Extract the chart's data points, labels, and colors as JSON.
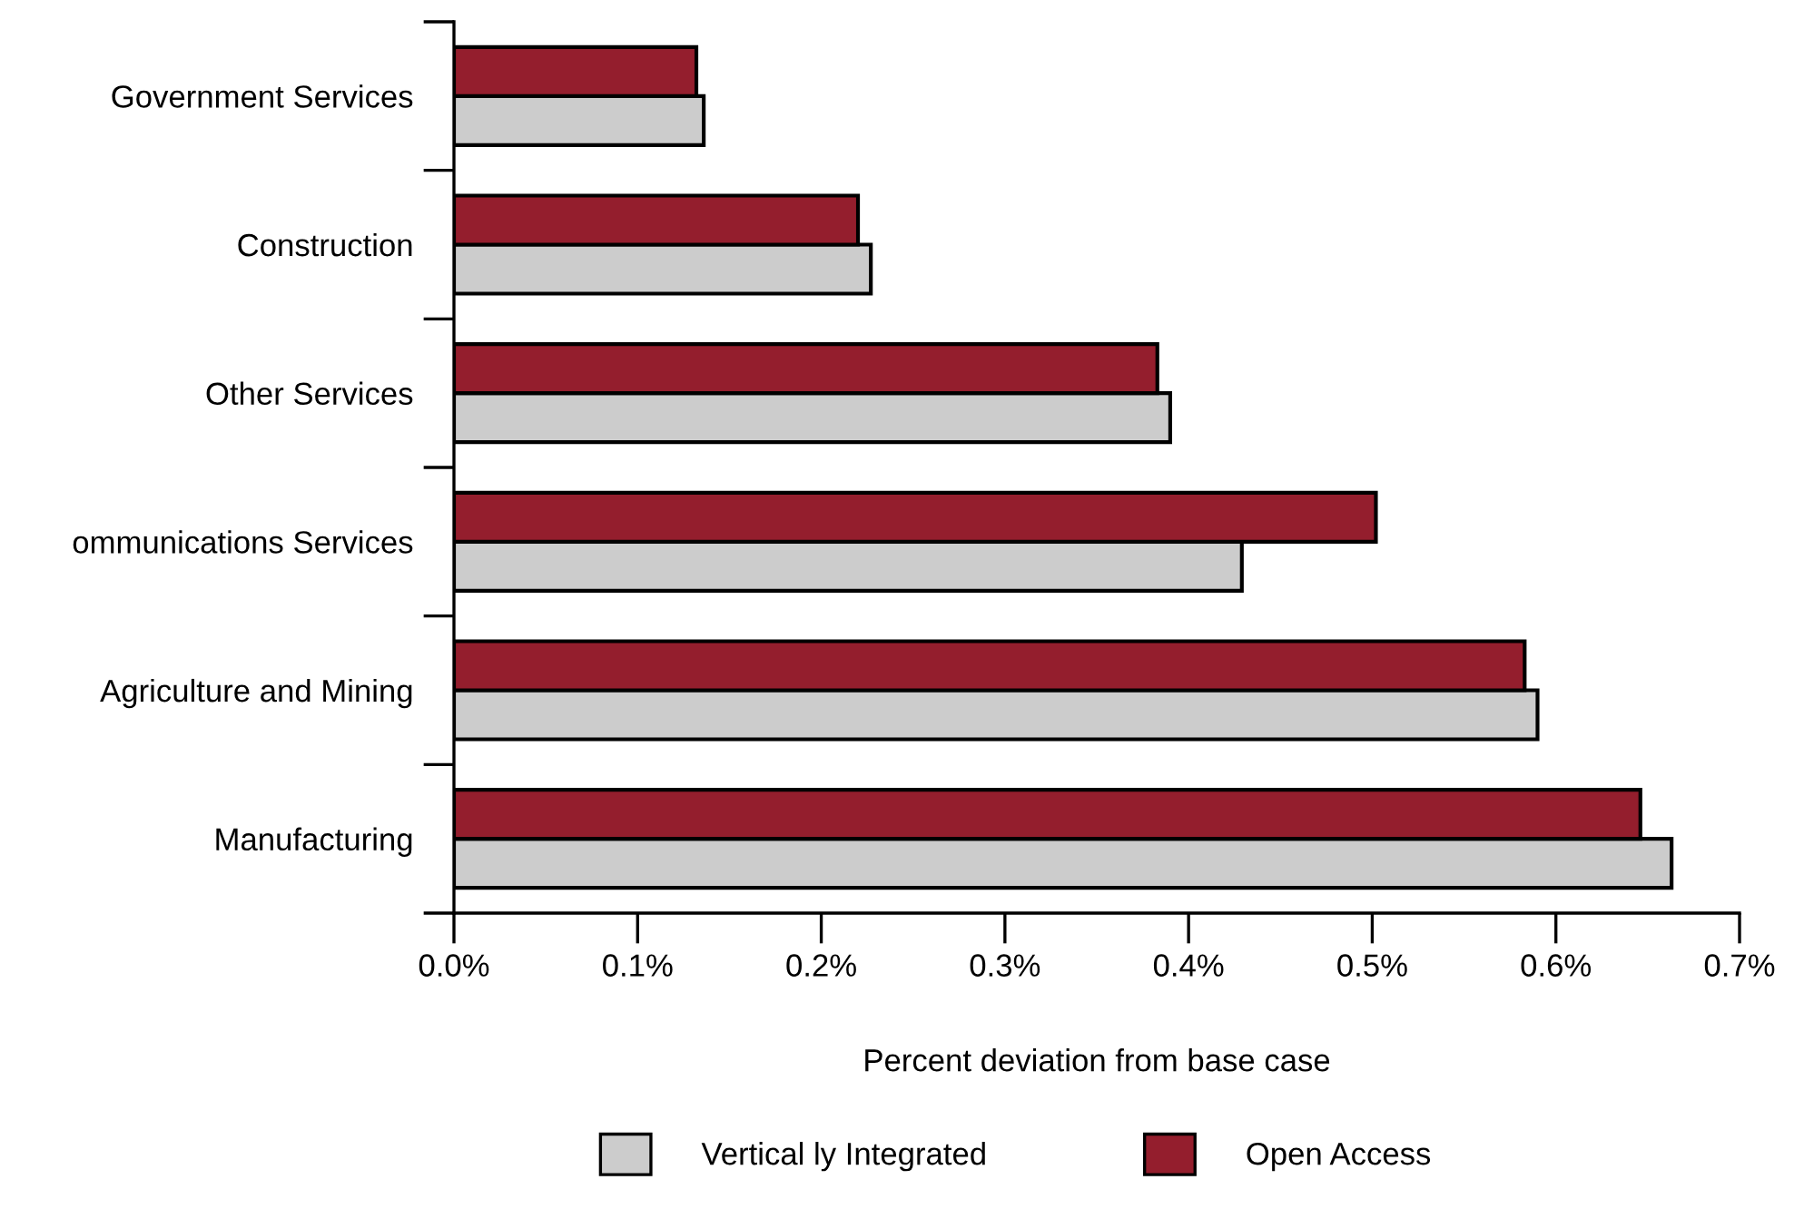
{
  "chart_data": {
    "type": "bar",
    "orientation": "horizontal",
    "xlabel": "Percent deviation from base case",
    "categories": [
      "Government Services",
      "Construction",
      "Other Services",
      "ommunications Services",
      "Agriculture and Mining",
      "Manufacturing"
    ],
    "series": [
      {
        "name": "Vertical ly Integrated",
        "color": "#cccccc",
        "values": [
          0.136,
          0.227,
          0.39,
          0.429,
          0.59,
          0.663
        ]
      },
      {
        "name": "Open Access",
        "color": "#941e2d",
        "values": [
          0.132,
          0.22,
          0.383,
          0.502,
          0.583,
          0.646
        ]
      }
    ],
    "xlim": [
      0,
      0.7
    ],
    "xticks": [
      {
        "value": 0,
        "label": "0.0%"
      },
      {
        "value": 0.1,
        "label": "0.1%"
      },
      {
        "value": 0.2,
        "label": "0.2%"
      },
      {
        "value": 0.3,
        "label": "0.3%"
      },
      {
        "value": 0.4,
        "label": "0.4%"
      },
      {
        "value": 0.5,
        "label": "0.5%"
      },
      {
        "value": 0.6,
        "label": "0.6%"
      },
      {
        "value": 0.7,
        "label": "0.7%"
      }
    ],
    "grid": false,
    "legend": "bottom"
  }
}
